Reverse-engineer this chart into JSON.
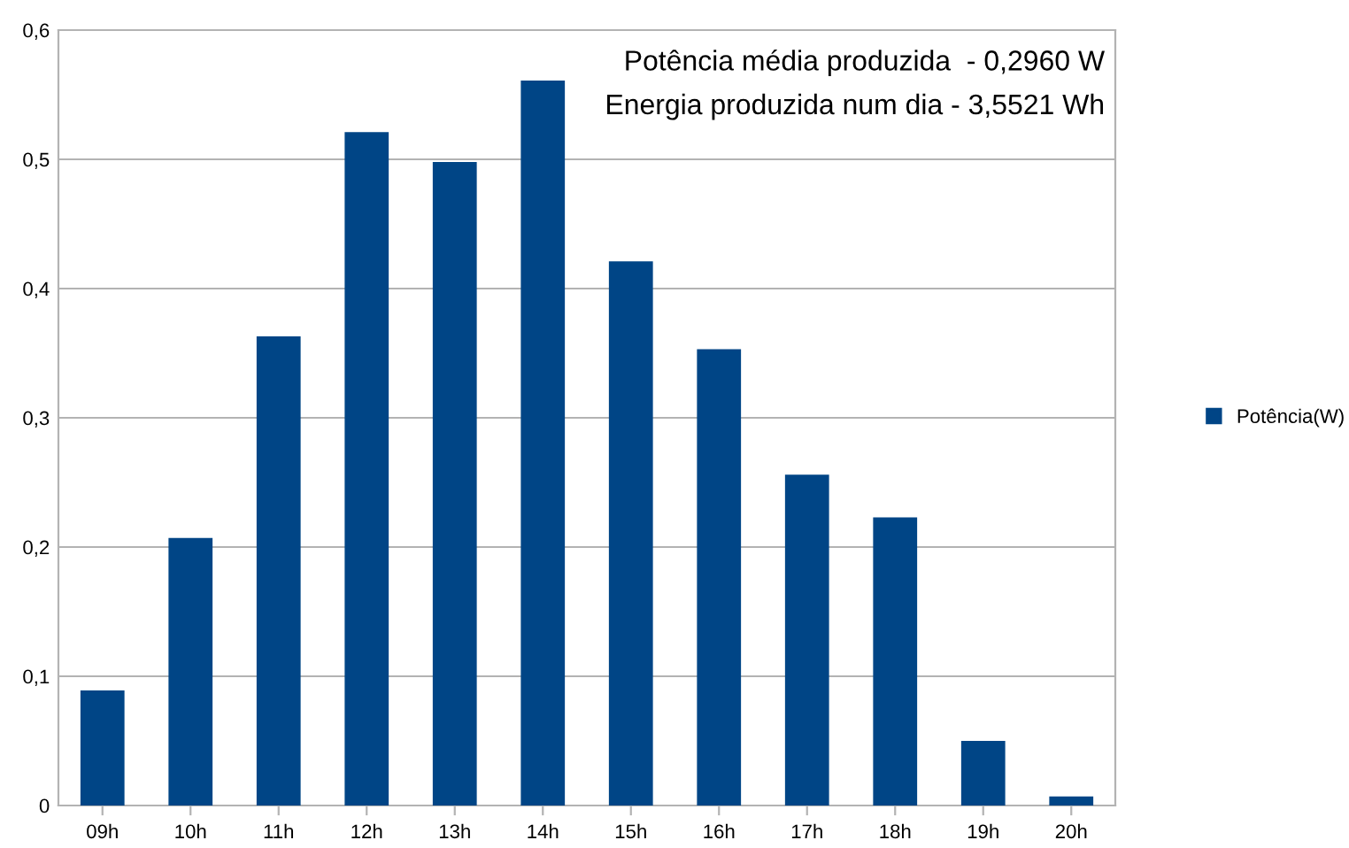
{
  "chart_data": {
    "type": "bar",
    "categories": [
      "09h",
      "10h",
      "11h",
      "12h",
      "13h",
      "14h",
      "15h",
      "16h",
      "17h",
      "18h",
      "19h",
      "20h"
    ],
    "series": [
      {
        "name": "Potência(W)",
        "color": "#004586",
        "values": [
          0.089,
          0.207,
          0.363,
          0.521,
          0.498,
          0.561,
          0.421,
          0.353,
          0.256,
          0.223,
          0.05,
          0.007
        ]
      }
    ],
    "ylim": [
      0,
      0.6
    ],
    "yticks": [
      {
        "value": 0,
        "label": "0"
      },
      {
        "value": 0.1,
        "label": "0,1"
      },
      {
        "value": 0.2,
        "label": "0,2"
      },
      {
        "value": 0.3,
        "label": "0,3"
      },
      {
        "value": 0.4,
        "label": "0,4"
      },
      {
        "value": 0.5,
        "label": "0,5"
      },
      {
        "value": 0.6,
        "label": "0,6"
      }
    ],
    "grid": "y",
    "legend": "right",
    "annotations": [
      "Potência média produzida  - 0,2960 W",
      "Energia produzida num dia - 3,5521 Wh"
    ]
  }
}
